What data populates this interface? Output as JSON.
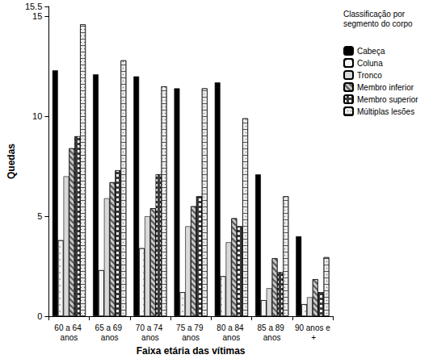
{
  "chart_data": {
    "type": "bar",
    "x_label": "Faixa etária das vítimas",
    "y_label": "Quedas",
    "legend_title": "Classificação por segmento do corpo",
    "categories": [
      "60 a 64 anos",
      "65 a 69 anos",
      "70 a 74 anos",
      "75 a 79 anos",
      "80 a 84 anos",
      "85 a 89 anos",
      "90 anos e +"
    ],
    "series": [
      {
        "name": "Cabeça",
        "color": "#000000",
        "values": [
          12.3,
          12.1,
          12.0,
          11.4,
          11.7,
          7.1,
          4.0
        ]
      },
      {
        "name": "Coluna",
        "color": "#f4f4f4",
        "values": [
          3.8,
          2.3,
          3.4,
          1.2,
          2.0,
          0.8,
          0.6
        ]
      },
      {
        "name": "Tronco",
        "color": "#d9d9d9",
        "values": [
          7.0,
          5.9,
          5.0,
          4.5,
          3.7,
          1.4,
          0.95
        ]
      },
      {
        "name": "Membro inferior",
        "color": "#c8c8c8",
        "values": [
          8.4,
          6.7,
          5.4,
          5.5,
          4.9,
          2.9,
          1.85
        ]
      },
      {
        "name": "Membro superior",
        "color": "#3a3a3a",
        "values": [
          9.0,
          7.3,
          7.1,
          6.0,
          4.5,
          2.2,
          1.2
        ]
      },
      {
        "name": "Múltiplas lesões",
        "color": "#ececec",
        "values": [
          14.6,
          12.8,
          11.5,
          11.4,
          9.9,
          6.0,
          2.95
        ]
      }
    ],
    "ylim": [
      0,
      15.5
    ],
    "yticks": [
      0,
      5,
      10,
      15
    ],
    "legend": "right",
    "grid": false
  }
}
